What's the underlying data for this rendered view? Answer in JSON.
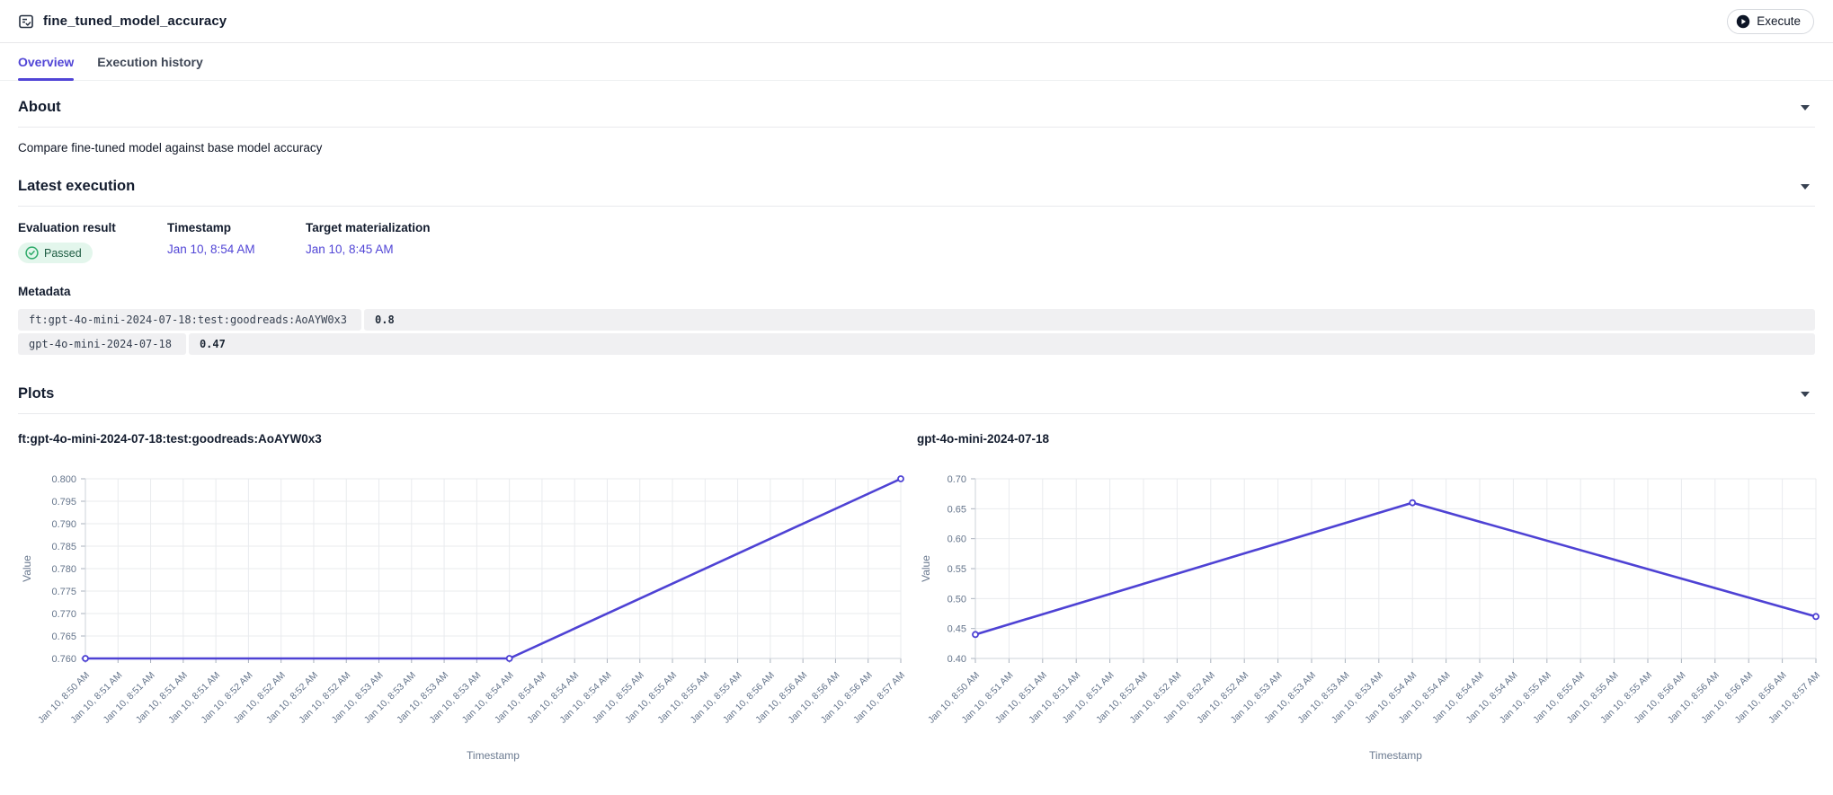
{
  "header": {
    "title": "fine_tuned_model_accuracy",
    "execute_label": "Execute"
  },
  "tabs": [
    {
      "label": "Overview",
      "active": true
    },
    {
      "label": "Execution history",
      "active": false
    }
  ],
  "about": {
    "heading": "About",
    "description": "Compare fine-tuned model against base model accuracy"
  },
  "latest_execution": {
    "heading": "Latest execution",
    "columns": [
      "Evaluation result",
      "Timestamp",
      "Target materialization"
    ],
    "evaluation_result": "Passed",
    "timestamp": "Jan 10, 8:54 AM",
    "target_materialization": "Jan 10, 8:45 AM",
    "metadata_heading": "Metadata",
    "metadata_rows": [
      {
        "key": "ft:gpt-4o-mini-2024-07-18:test:goodreads:AoAYW0x3",
        "value": "0.8"
      },
      {
        "key": "gpt-4o-mini-2024-07-18",
        "value": "0.47"
      }
    ]
  },
  "plots": {
    "heading": "Plots"
  },
  "colors": {
    "accent": "#5145d6",
    "line": "#4e42d4",
    "passed_bg": "#e3f6ec",
    "passed_text": "#1c5b41",
    "passed_icon": "#2fab6a"
  },
  "icons": {
    "header": "eval-checklist-icon",
    "execute": "play-circle-icon",
    "passed": "check-circle-icon",
    "section": "chevron-down-icon"
  },
  "chart_data": [
    {
      "type": "line",
      "title": "ft:gpt-4o-mini-2024-07-18:test:goodreads:AoAYW0x3",
      "xlabel": "Timestamp",
      "ylabel": "Value",
      "ylim": [
        0.76,
        0.8
      ],
      "yticks": [
        "0.760",
        "0.765",
        "0.770",
        "0.775",
        "0.780",
        "0.785",
        "0.790",
        "0.795",
        "0.800"
      ],
      "grid": true,
      "legend_position": "none",
      "x_ticklabels": [
        "Jan 10, 8:50 AM",
        "Jan 10, 8:51 AM",
        "Jan 10, 8:51 AM",
        "Jan 10, 8:51 AM",
        "Jan 10, 8:51 AM",
        "Jan 10, 8:52 AM",
        "Jan 10, 8:52 AM",
        "Jan 10, 8:52 AM",
        "Jan 10, 8:52 AM",
        "Jan 10, 8:53 AM",
        "Jan 10, 8:53 AM",
        "Jan 10, 8:53 AM",
        "Jan 10, 8:53 AM",
        "Jan 10, 8:54 AM",
        "Jan 10, 8:54 AM",
        "Jan 10, 8:54 AM",
        "Jan 10, 8:54 AM",
        "Jan 10, 8:55 AM",
        "Jan 10, 8:55 AM",
        "Jan 10, 8:55 AM",
        "Jan 10, 8:55 AM",
        "Jan 10, 8:56 AM",
        "Jan 10, 8:56 AM",
        "Jan 10, 8:56 AM",
        "Jan 10, 8:56 AM",
        "Jan 10, 8:57 AM"
      ],
      "series": [
        {
          "name": "ft:gpt-4o-mini-2024-07-18:test:goodreads:AoAYW0x3",
          "points": [
            {
              "x": "Jan 10, 8:50 AM",
              "i": 0,
              "y": 0.76
            },
            {
              "x": "Jan 10, 8:54 AM",
              "i": 13,
              "y": 0.76
            },
            {
              "x": "Jan 10, 8:57 AM",
              "i": 25,
              "y": 0.8
            }
          ]
        }
      ]
    },
    {
      "type": "line",
      "title": "gpt-4o-mini-2024-07-18",
      "xlabel": "Timestamp",
      "ylabel": "Value",
      "ylim": [
        0.4,
        0.7
      ],
      "yticks": [
        "0.40",
        "0.45",
        "0.50",
        "0.55",
        "0.60",
        "0.65",
        "0.70"
      ],
      "grid": true,
      "legend_position": "none",
      "x_ticklabels": [
        "Jan 10, 8:50 AM",
        "Jan 10, 8:51 AM",
        "Jan 10, 8:51 AM",
        "Jan 10, 8:51 AM",
        "Jan 10, 8:51 AM",
        "Jan 10, 8:52 AM",
        "Jan 10, 8:52 AM",
        "Jan 10, 8:52 AM",
        "Jan 10, 8:52 AM",
        "Jan 10, 8:53 AM",
        "Jan 10, 8:53 AM",
        "Jan 10, 8:53 AM",
        "Jan 10, 8:53 AM",
        "Jan 10, 8:54 AM",
        "Jan 10, 8:54 AM",
        "Jan 10, 8:54 AM",
        "Jan 10, 8:54 AM",
        "Jan 10, 8:55 AM",
        "Jan 10, 8:55 AM",
        "Jan 10, 8:55 AM",
        "Jan 10, 8:55 AM",
        "Jan 10, 8:56 AM",
        "Jan 10, 8:56 AM",
        "Jan 10, 8:56 AM",
        "Jan 10, 8:56 AM",
        "Jan 10, 8:57 AM"
      ],
      "series": [
        {
          "name": "gpt-4o-mini-2024-07-18",
          "points": [
            {
              "x": "Jan 10, 8:50 AM",
              "i": 0,
              "y": 0.44
            },
            {
              "x": "Jan 10, 8:54 AM",
              "i": 13,
              "y": 0.66
            },
            {
              "x": "Jan 10, 8:57 AM",
              "i": 25,
              "y": 0.47
            }
          ]
        }
      ]
    }
  ]
}
